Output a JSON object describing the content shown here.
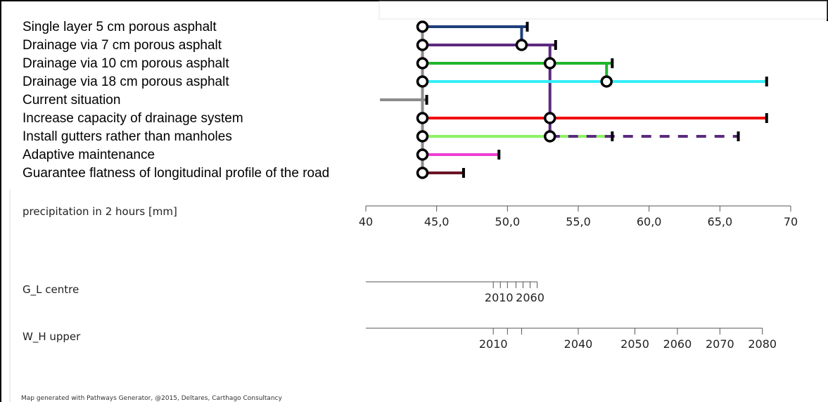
{
  "pathways": {
    "measures": [
      {
        "label": "Single layer 5 cm porous asphalt",
        "color": "#1f3f7a"
      },
      {
        "label": "Drainage via 7 cm porous asphalt",
        "color": "#5b2a7e"
      },
      {
        "label": "Drainage via 10 cm porous asphalt",
        "color": "#22b52e"
      },
      {
        "label": "Drainage via 18 cm porous asphalt",
        "color": "#33eef7"
      },
      {
        "label": "Current situation",
        "color": "#8c8c8c"
      },
      {
        "label": "Increase capacity of drainage system",
        "color": "#f01010"
      },
      {
        "label": "Install gutters rather than manholes",
        "color": "#8ef264"
      },
      {
        "label": "Adaptive maintenance",
        "color": "#ee3fd1"
      },
      {
        "label": "Guarantee flatness of longitudinal profile of the road",
        "color": "#6b1426"
      }
    ],
    "segments": [
      {
        "row": 4,
        "from": 41.0,
        "to": 44.3,
        "color": "#8c8c8c"
      },
      {
        "row": 0,
        "from": 44.0,
        "to": 51.4,
        "color": "#1f3f7a"
      },
      {
        "row": 1,
        "from": 44.0,
        "to": 53.4,
        "color": "#5b2a7e"
      },
      {
        "row": 2,
        "from": 44.0,
        "to": 57.4,
        "color": "#22b52e"
      },
      {
        "row": 3,
        "from": 44.0,
        "to": 68.3,
        "color": "#33eef7"
      },
      {
        "row": 5,
        "from": 44.0,
        "to": 68.3,
        "color": "#f01010"
      },
      {
        "row": 6,
        "from": 44.0,
        "to": 57.4,
        "color": "#8ef264"
      },
      {
        "row": 6,
        "from": 53.0,
        "to": 66.3,
        "color": "#5b2a7e",
        "dashed": true
      },
      {
        "row": 7,
        "from": 44.0,
        "to": 49.4,
        "color": "#ee3fd1"
      },
      {
        "row": 8,
        "from": 44.0,
        "to": 46.9,
        "color": "#6b1426"
      }
    ],
    "transfers": [
      {
        "at": 44.0,
        "rows": [
          0,
          8
        ],
        "color": "#8c8c8c"
      },
      {
        "at": 51.0,
        "rows": [
          0,
          1
        ],
        "color": "#1f3f7a"
      },
      {
        "at": 53.0,
        "rows": [
          1,
          6
        ],
        "color": "#5b2a7e"
      },
      {
        "at": 57.0,
        "rows": [
          2,
          3
        ],
        "color": "#22b52e"
      }
    ],
    "nodes": [
      {
        "row": 0,
        "at": 44.0
      },
      {
        "row": 1,
        "at": 44.0
      },
      {
        "row": 2,
        "at": 44.0
      },
      {
        "row": 3,
        "at": 44.0
      },
      {
        "row": 5,
        "at": 44.0
      },
      {
        "row": 6,
        "at": 44.0
      },
      {
        "row": 7,
        "at": 44.0
      },
      {
        "row": 8,
        "at": 44.0
      },
      {
        "row": 1,
        "at": 51.0
      },
      {
        "row": 2,
        "at": 53.0
      },
      {
        "row": 5,
        "at": 53.0
      },
      {
        "row": 6,
        "at": 53.0
      },
      {
        "row": 3,
        "at": 57.0
      }
    ],
    "end_ticks": [
      {
        "row": 0,
        "at": 51.4
      },
      {
        "row": 1,
        "at": 53.4
      },
      {
        "row": 2,
        "at": 57.4
      },
      {
        "row": 3,
        "at": 68.3
      },
      {
        "row": 4,
        "at": 44.3
      },
      {
        "row": 5,
        "at": 68.3
      },
      {
        "row": 6,
        "at": 57.4
      },
      {
        "row": 6,
        "at": 66.3
      },
      {
        "row": 7,
        "at": 49.4
      },
      {
        "row": 8,
        "at": 46.9
      }
    ]
  },
  "axis": {
    "title": "precipitation in 2 hours [mm]",
    "min": 40,
    "max": 70,
    "ticks": [
      {
        "value": 40,
        "label": "40"
      },
      {
        "value": 45,
        "label": "45,0"
      },
      {
        "value": 50,
        "label": "50,0"
      },
      {
        "value": 55,
        "label": "55,0"
      },
      {
        "value": 60,
        "label": "60,0"
      },
      {
        "value": 65,
        "label": "65,0"
      },
      {
        "value": 70,
        "label": "70"
      }
    ]
  },
  "scenarios": [
    {
      "name": "G_L centre",
      "line_from": 40,
      "line_to": 52.1,
      "tick_values": [
        49.0,
        49.5,
        50.0,
        50.6,
        51.1,
        51.6,
        52.1
      ],
      "labels": [
        {
          "text": "2010",
          "at": 49.4
        },
        {
          "text": "2060",
          "at": 51.6
        }
      ]
    },
    {
      "name": "W_H upper",
      "line_from": 40,
      "line_to": 68.0,
      "tick_values": [
        49.0,
        50.0,
        51.0,
        55.0,
        59.0,
        62.0,
        65.0,
        68.0
      ],
      "labels": [
        {
          "text": "2010",
          "at": 49.0
        },
        {
          "text": "2040",
          "at": 55.0
        },
        {
          "text": "2050",
          "at": 59.0
        },
        {
          "text": "2060",
          "at": 62.0
        },
        {
          "text": "2070",
          "at": 65.0
        },
        {
          "text": "2080",
          "at": 68.0
        }
      ]
    }
  ],
  "footer": "Map generated with Pathways Generator, @2015, Deltares, Carthago Consultancy"
}
